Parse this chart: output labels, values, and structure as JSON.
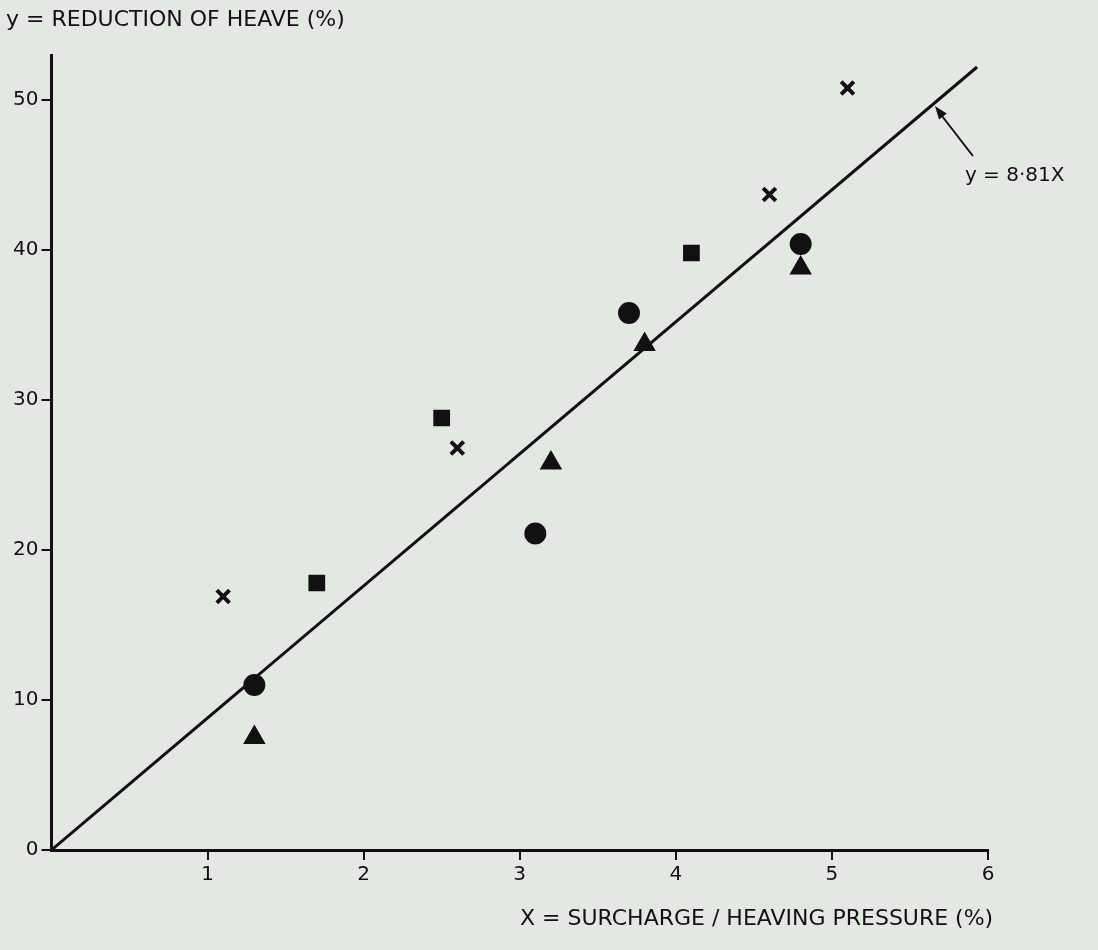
{
  "chart_data": {
    "type": "scatter",
    "ylabel": "y = REDUCTION OF HEAVE (%)",
    "xlabel": "X = SURCHARGE / HEAVING PRESSURE (%)",
    "xlim": [
      0,
      6
    ],
    "xticks": [
      1,
      2,
      3,
      4,
      5,
      6
    ],
    "ylim": [
      0,
      53
    ],
    "yticks": [
      0,
      10,
      20,
      30,
      40,
      50
    ],
    "grid": false,
    "legend": false,
    "series": [
      {
        "color": "#111111",
        "marker": "cross",
        "x": [
          1.1,
          2.6,
          4.6,
          5.1
        ],
        "values": [
          16.9,
          26.8,
          43.7,
          50.8
        ]
      },
      {
        "color": "#111111",
        "marker": "circle",
        "x": [
          1.3,
          3.1,
          3.7,
          4.8
        ],
        "values": [
          11.0,
          21.1,
          35.8,
          40.4
        ]
      },
      {
        "color": "#111111",
        "marker": "square",
        "x": [
          1.7,
          2.5,
          4.1
        ],
        "values": [
          17.8,
          28.8,
          39.8
        ]
      },
      {
        "color": "#111111",
        "marker": "triangle",
        "x": [
          1.3,
          3.2,
          3.8,
          4.8
        ],
        "values": [
          7.5,
          25.8,
          33.7,
          38.8
        ]
      },
      {
        "type": "line",
        "color": "#111111",
        "marker": "none",
        "line_style": "solid",
        "x": [
          0,
          5.93
        ],
        "values": [
          0,
          52.2
        ]
      }
    ],
    "annotations": [
      {
        "text": "y = 8·81X",
        "x": 5.66,
        "y": 49.6
      }
    ]
  }
}
